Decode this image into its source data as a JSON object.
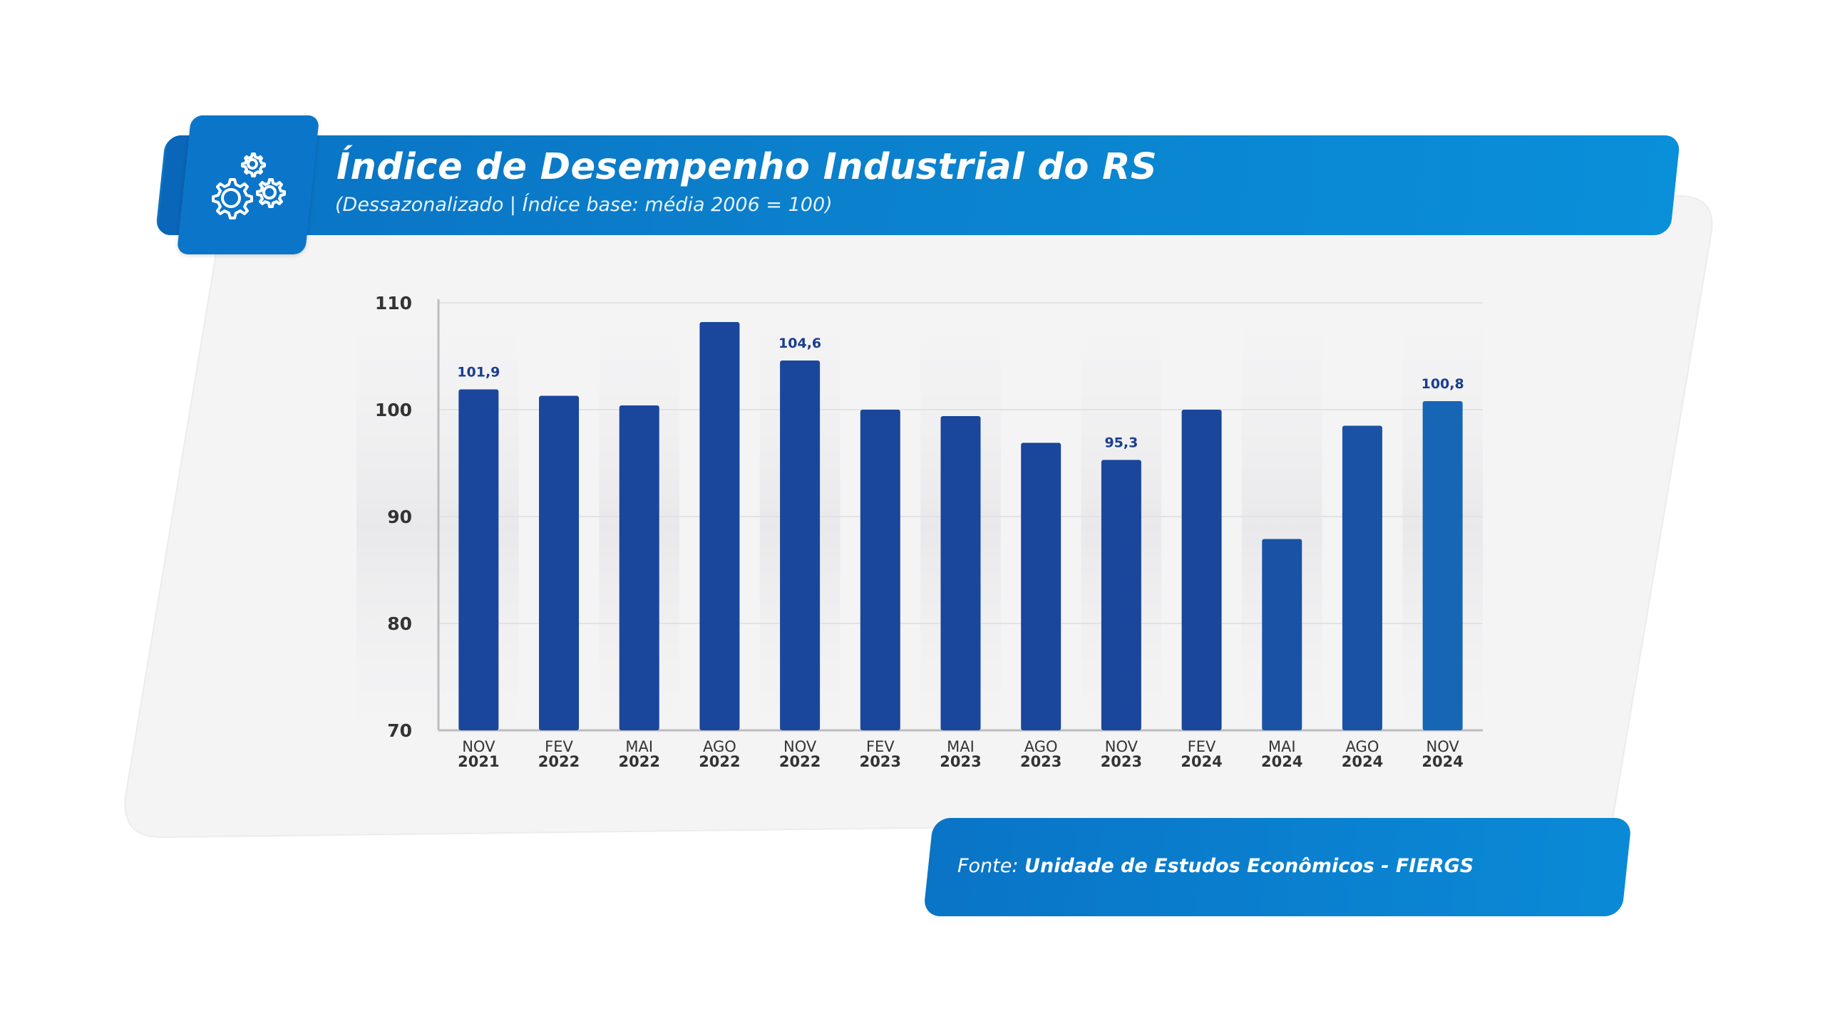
{
  "header": {
    "title": "Índice de Desempenho Industrial do RS",
    "subtitle": "(Dessazonalizado | Índice base: média 2006 = 100)",
    "icon": "gears-icon"
  },
  "footer": {
    "source_prefix": "Fonte: ",
    "source_name": "Unidade de Estudos Econômicos - FIERGS"
  },
  "colors": {
    "bar": "#1a469c",
    "bar_last": "#1766b5",
    "banner": "#0b7fcb",
    "data_label": "#1a3d8f"
  },
  "chart_data": {
    "type": "bar",
    "title": "Índice de Desempenho Industrial do RS",
    "subtitle": "(Dessazonalizado | Índice base: média 2006 = 100)",
    "categories": [
      [
        "NOV",
        "2021"
      ],
      [
        "FEV",
        "2022"
      ],
      [
        "MAI",
        "2022"
      ],
      [
        "AGO",
        "2022"
      ],
      [
        "NOV",
        "2022"
      ],
      [
        "FEV",
        "2023"
      ],
      [
        "MAI",
        "2023"
      ],
      [
        "AGO",
        "2023"
      ],
      [
        "NOV",
        "2023"
      ],
      [
        "FEV",
        "2024"
      ],
      [
        "MAI",
        "2024"
      ],
      [
        "AGO",
        "2024"
      ],
      [
        "NOV",
        "2024"
      ]
    ],
    "values": [
      101.9,
      101.3,
      100.4,
      108.2,
      104.6,
      100.0,
      99.4,
      96.9,
      95.3,
      100.0,
      87.9,
      98.5,
      100.8
    ],
    "data_labels": [
      "101,9",
      "",
      "",
      "",
      "104,6",
      "",
      "",
      "",
      "95,3",
      "",
      "",
      "",
      "100,8"
    ],
    "ylim": [
      70,
      110
    ],
    "yticks": [
      "70",
      "80",
      "90",
      "100",
      "110"
    ],
    "xlabel": "",
    "ylabel": "",
    "grid": true,
    "legend": "none"
  }
}
